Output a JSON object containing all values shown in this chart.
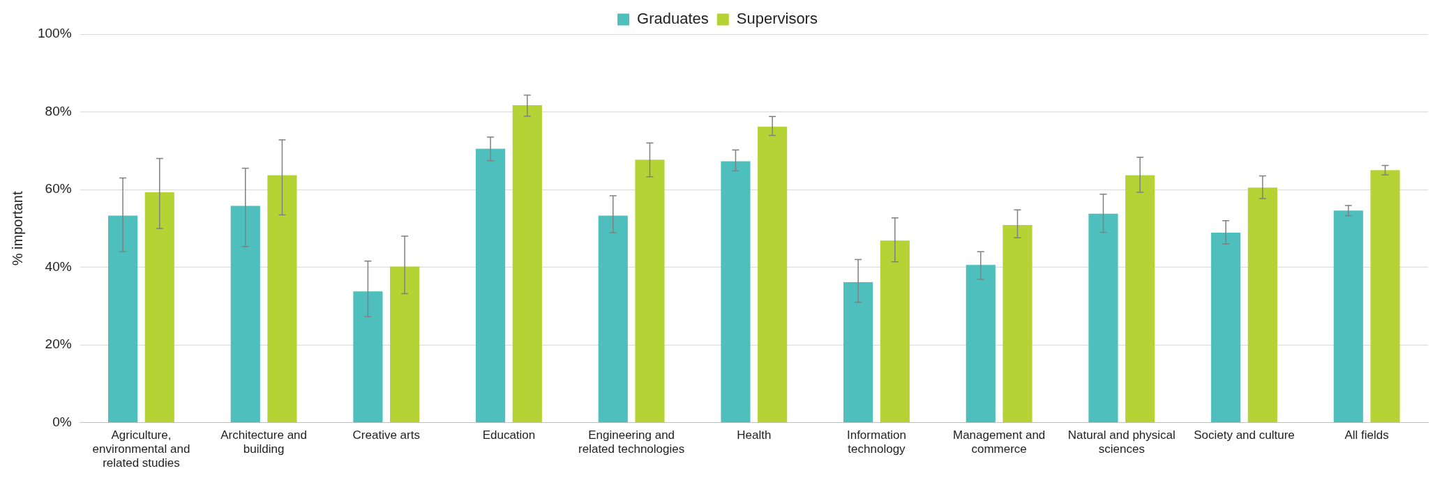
{
  "chart_data": {
    "type": "bar",
    "ylabel": "% important",
    "categories": [
      "Agriculture, environmental and related studies",
      "Architecture and building",
      "Creative arts",
      "Education",
      "Engineering and related technologies",
      "Health",
      "Information technology",
      "Management and commerce",
      "Natural and physical sciences",
      "Society and culture",
      "All fields"
    ],
    "series": [
      {
        "name": "Graduates",
        "color": "#4fbfbd",
        "values": [
          53.3,
          55.8,
          33.8,
          70.5,
          53.3,
          67.3,
          36.2,
          40.6,
          53.8,
          48.9,
          54.6
        ],
        "errors": [
          [
            44,
            63
          ],
          [
            45.3,
            65.5
          ],
          [
            27.3,
            41.6
          ],
          [
            67.4,
            73.5
          ],
          [
            48.9,
            58.4
          ],
          [
            64.8,
            70.2
          ],
          [
            31,
            42
          ],
          [
            36.9,
            44
          ],
          [
            49,
            58.8
          ],
          [
            46,
            52
          ],
          [
            53.3,
            55.9
          ]
        ]
      },
      {
        "name": "Supervisors",
        "color": "#b5d334",
        "values": [
          59.3,
          63.7,
          40.2,
          81.7,
          67.7,
          76.2,
          46.9,
          50.9,
          63.7,
          60.5,
          65
        ],
        "errors": [
          [
            50,
            68
          ],
          [
            53.5,
            72.8
          ],
          [
            33.2,
            48
          ],
          [
            78.9,
            84.3
          ],
          [
            63.3,
            72
          ],
          [
            73.9,
            78.8
          ],
          [
            41.4,
            52.7
          ],
          [
            47.6,
            54.8
          ],
          [
            59.3,
            68.3
          ],
          [
            57.7,
            63.5
          ],
          [
            63.8,
            66.2
          ]
        ]
      }
    ],
    "ylim": [
      0,
      100
    ],
    "yticks": [
      {
        "value": 0,
        "label": "0%"
      },
      {
        "value": 20,
        "label": "20%"
      },
      {
        "value": 40,
        "label": "40%"
      },
      {
        "value": 60,
        "label": "60%"
      },
      {
        "value": 80,
        "label": "80%"
      },
      {
        "value": 100,
        "label": "100%"
      }
    ],
    "grid": "y",
    "legend": "top"
  }
}
